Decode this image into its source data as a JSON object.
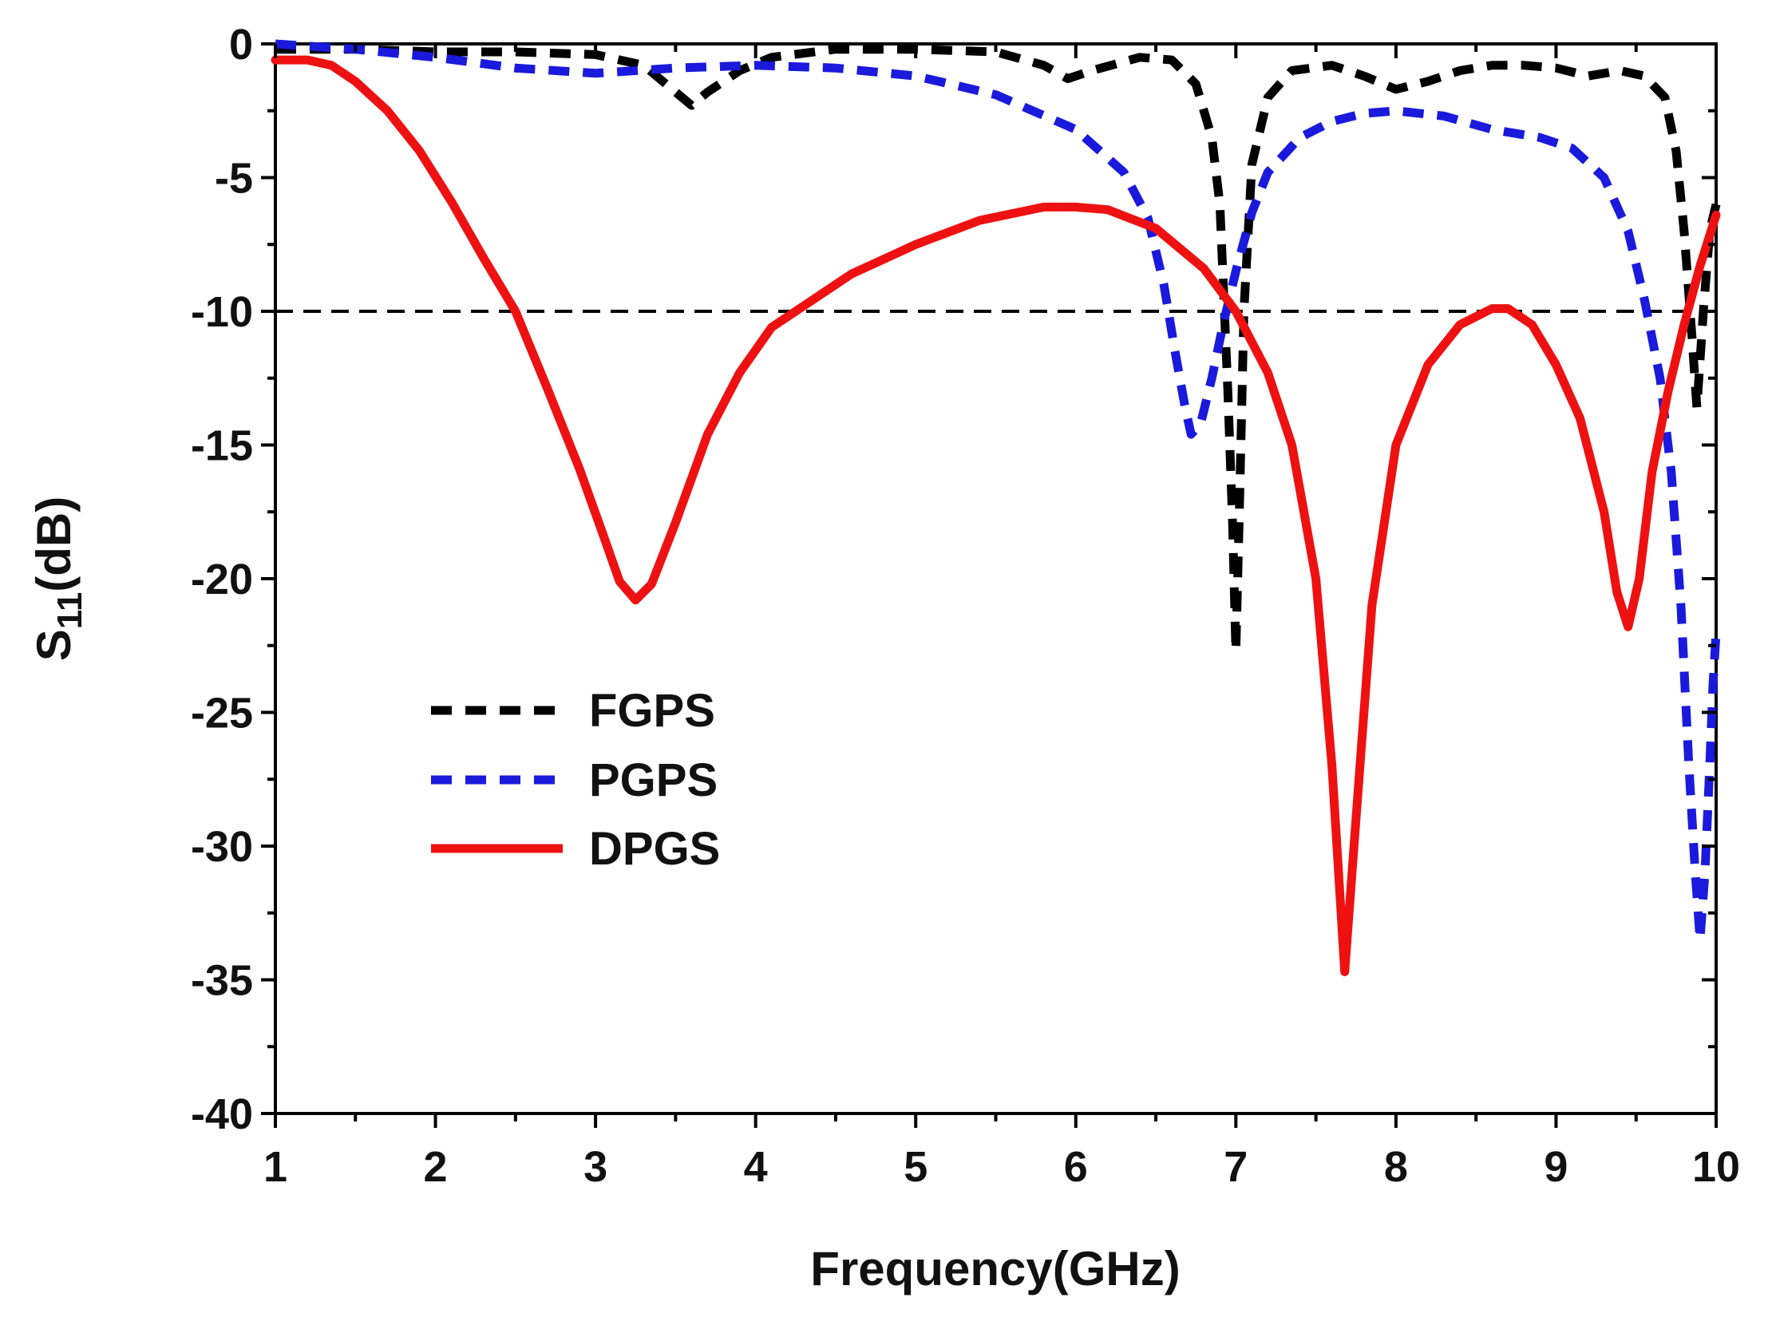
{
  "chart_data": {
    "type": "line",
    "title": "",
    "xlabel": "Frequency(GHz)",
    "ylabel": {
      "base": "S",
      "subscript": "11",
      "suffix": "(dB)"
    },
    "xlim": [
      1,
      10
    ],
    "ylim": [
      -40,
      0
    ],
    "x_ticks": [
      1,
      2,
      3,
      4,
      5,
      6,
      7,
      8,
      9,
      10
    ],
    "y_ticks": [
      0,
      -5,
      -10,
      -15,
      -20,
      -25,
      -30,
      -35,
      -40
    ],
    "grid": false,
    "reference_line": {
      "y": -10,
      "style": "dashed",
      "color": "#000000"
    },
    "legend": {
      "position": "lower-left",
      "entries": [
        "FGPS",
        "PGPS",
        "DPGS"
      ]
    },
    "series": [
      {
        "name": "FGPS",
        "color": "#000000",
        "style": "dashed",
        "points": [
          [
            1.0,
            -0.2
          ],
          [
            1.5,
            -0.2
          ],
          [
            2.0,
            -0.3
          ],
          [
            2.5,
            -0.3
          ],
          [
            3.0,
            -0.4
          ],
          [
            3.3,
            -0.8
          ],
          [
            3.5,
            -1.8
          ],
          [
            3.6,
            -2.3
          ],
          [
            3.7,
            -1.8
          ],
          [
            3.9,
            -1.0
          ],
          [
            4.1,
            -0.5
          ],
          [
            4.5,
            -0.2
          ],
          [
            5.0,
            -0.2
          ],
          [
            5.5,
            -0.3
          ],
          [
            5.8,
            -0.8
          ],
          [
            5.95,
            -1.3
          ],
          [
            6.1,
            -1.0
          ],
          [
            6.4,
            -0.5
          ],
          [
            6.6,
            -0.6
          ],
          [
            6.75,
            -1.5
          ],
          [
            6.85,
            -3.5
          ],
          [
            6.9,
            -6.0
          ],
          [
            6.95,
            -13.0
          ],
          [
            6.98,
            -18.0
          ],
          [
            7.0,
            -22.7
          ],
          [
            7.02,
            -18.0
          ],
          [
            7.05,
            -10.0
          ],
          [
            7.1,
            -4.5
          ],
          [
            7.2,
            -2.0
          ],
          [
            7.35,
            -1.0
          ],
          [
            7.6,
            -0.8
          ],
          [
            7.8,
            -1.2
          ],
          [
            8.0,
            -1.7
          ],
          [
            8.2,
            -1.4
          ],
          [
            8.4,
            -1.0
          ],
          [
            8.6,
            -0.8
          ],
          [
            8.8,
            -0.8
          ],
          [
            9.0,
            -0.9
          ],
          [
            9.2,
            -1.2
          ],
          [
            9.4,
            -1.0
          ],
          [
            9.55,
            -1.2
          ],
          [
            9.68,
            -2.0
          ],
          [
            9.75,
            -4.0
          ],
          [
            9.8,
            -7.0
          ],
          [
            9.85,
            -11.0
          ],
          [
            9.88,
            -13.6
          ],
          [
            9.92,
            -10.0
          ],
          [
            9.96,
            -7.0
          ],
          [
            10.0,
            -6.0
          ]
        ]
      },
      {
        "name": "PGPS",
        "color": "#1a1adc",
        "style": "dashed",
        "points": [
          [
            1.0,
            0.0
          ],
          [
            1.5,
            -0.2
          ],
          [
            2.0,
            -0.5
          ],
          [
            2.5,
            -0.9
          ],
          [
            3.0,
            -1.1
          ],
          [
            3.5,
            -0.9
          ],
          [
            4.0,
            -0.8
          ],
          [
            4.5,
            -0.9
          ],
          [
            5.0,
            -1.2
          ],
          [
            5.5,
            -1.9
          ],
          [
            6.0,
            -3.2
          ],
          [
            6.3,
            -4.8
          ],
          [
            6.45,
            -6.5
          ],
          [
            6.55,
            -9.0
          ],
          [
            6.62,
            -11.5
          ],
          [
            6.68,
            -13.5
          ],
          [
            6.72,
            -14.6
          ],
          [
            6.78,
            -14.2
          ],
          [
            6.85,
            -12.5
          ],
          [
            6.92,
            -10.5
          ],
          [
            7.0,
            -8.5
          ],
          [
            7.1,
            -6.3
          ],
          [
            7.2,
            -4.8
          ],
          [
            7.4,
            -3.5
          ],
          [
            7.6,
            -2.9
          ],
          [
            7.8,
            -2.6
          ],
          [
            8.0,
            -2.5
          ],
          [
            8.3,
            -2.7
          ],
          [
            8.6,
            -3.2
          ],
          [
            8.9,
            -3.5
          ],
          [
            9.1,
            -3.9
          ],
          [
            9.3,
            -5.0
          ],
          [
            9.45,
            -7.0
          ],
          [
            9.55,
            -9.5
          ],
          [
            9.65,
            -12.5
          ],
          [
            9.72,
            -16.0
          ],
          [
            9.78,
            -21.0
          ],
          [
            9.83,
            -27.0
          ],
          [
            9.87,
            -31.0
          ],
          [
            9.9,
            -33.5
          ],
          [
            9.93,
            -31.0
          ],
          [
            9.96,
            -27.0
          ],
          [
            9.98,
            -24.0
          ],
          [
            10.0,
            -22.0
          ]
        ]
      },
      {
        "name": "DPGS",
        "color": "#ee1111",
        "style": "solid",
        "points": [
          [
            1.0,
            -0.6
          ],
          [
            1.2,
            -0.6
          ],
          [
            1.35,
            -0.8
          ],
          [
            1.5,
            -1.4
          ],
          [
            1.7,
            -2.5
          ],
          [
            1.9,
            -4.0
          ],
          [
            2.1,
            -5.9
          ],
          [
            2.3,
            -8.0
          ],
          [
            2.5,
            -10.0
          ],
          [
            2.7,
            -12.9
          ],
          [
            2.9,
            -15.9
          ],
          [
            3.05,
            -18.4
          ],
          [
            3.15,
            -20.1
          ],
          [
            3.25,
            -20.8
          ],
          [
            3.35,
            -20.2
          ],
          [
            3.5,
            -17.9
          ],
          [
            3.7,
            -14.6
          ],
          [
            3.9,
            -12.3
          ],
          [
            4.1,
            -10.6
          ],
          [
            4.3,
            -9.8
          ],
          [
            4.6,
            -8.6
          ],
          [
            5.0,
            -7.5
          ],
          [
            5.4,
            -6.6
          ],
          [
            5.8,
            -6.1
          ],
          [
            6.0,
            -6.1
          ],
          [
            6.2,
            -6.2
          ],
          [
            6.5,
            -6.9
          ],
          [
            6.8,
            -8.4
          ],
          [
            7.0,
            -10.0
          ],
          [
            7.2,
            -12.3
          ],
          [
            7.35,
            -15.0
          ],
          [
            7.5,
            -20.0
          ],
          [
            7.6,
            -27.0
          ],
          [
            7.68,
            -34.7
          ],
          [
            7.75,
            -29.0
          ],
          [
            7.85,
            -21.0
          ],
          [
            8.0,
            -15.0
          ],
          [
            8.2,
            -12.0
          ],
          [
            8.4,
            -10.5
          ],
          [
            8.6,
            -9.9
          ],
          [
            8.7,
            -9.9
          ],
          [
            8.85,
            -10.5
          ],
          [
            9.0,
            -12.0
          ],
          [
            9.15,
            -14.0
          ],
          [
            9.3,
            -17.5
          ],
          [
            9.38,
            -20.5
          ],
          [
            9.45,
            -21.8
          ],
          [
            9.52,
            -20.0
          ],
          [
            9.6,
            -16.0
          ],
          [
            9.7,
            -13.0
          ],
          [
            9.8,
            -10.5
          ],
          [
            9.9,
            -8.3
          ],
          [
            10.0,
            -6.4
          ]
        ]
      }
    ]
  }
}
